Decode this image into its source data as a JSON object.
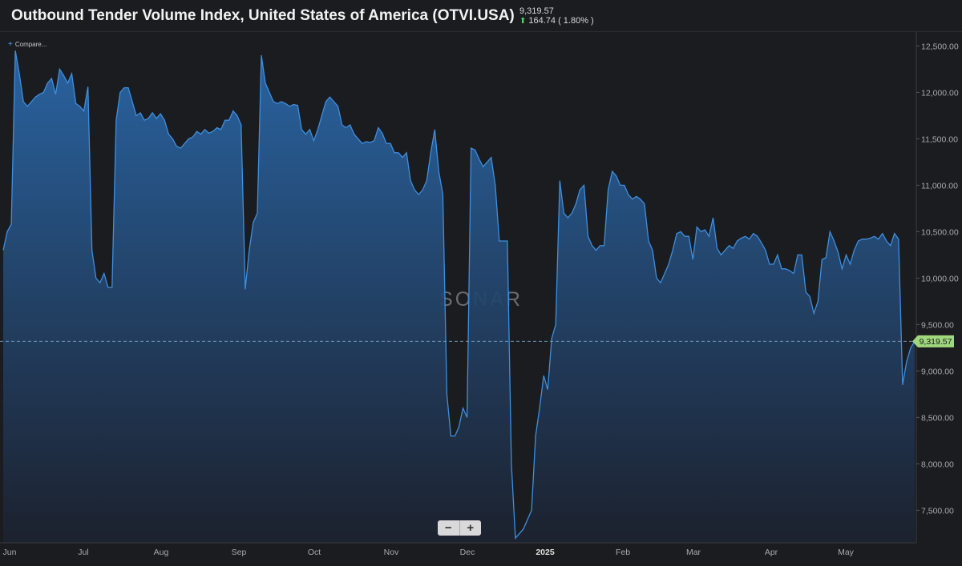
{
  "header": {
    "title": "Outbound Tender Volume Index, United States of America (OTVI.USA)",
    "last_value": "9,319.57",
    "change": "164.74 ( 1.80% )"
  },
  "toolbar": {
    "compare_label": "Compare...",
    "zoom_out": "−",
    "zoom_in": "+"
  },
  "watermark": "SONAR",
  "colors": {
    "line": "#3d8fe0",
    "fill_top": "#2a67a8",
    "fill_bottom": "#1c2230",
    "last_badge": "#9fd77c",
    "change_up": "#4cd964"
  },
  "chart_data": {
    "type": "area",
    "title": "Outbound Tender Volume Index, United States of America (OTVI.USA)",
    "y_axis_position": "right",
    "ylim": [
      7150,
      12650
    ],
    "y_ticks": [
      "7,500.00",
      "8,000.00",
      "8,500.00",
      "9,000.00",
      "9,500.00",
      "10,000.00",
      "10,500.00",
      "11,000.00",
      "11,500.00",
      "12,000.00",
      "12,500.00"
    ],
    "x_ticks": [
      "Jun",
      "Jul",
      "Aug",
      "Sep",
      "Oct",
      "Nov",
      "Dec",
      "2025",
      "Feb",
      "Mar",
      "Apr",
      "May"
    ],
    "last_value": 9319.57,
    "last_value_label": "9,319.57",
    "grid": false,
    "series": [
      {
        "values": [
          10300,
          10500,
          10580,
          12450,
          12200,
          11900,
          11850,
          11900,
          11950,
          11980,
          12000,
          12100,
          12150,
          11980,
          12250,
          12180,
          12100,
          12200,
          11880,
          11850,
          11800,
          12060,
          10300,
          10000,
          9950,
          10050,
          9900,
          9900,
          11700,
          12000,
          12050,
          12050,
          11900,
          11750,
          11780,
          11700,
          11720,
          11780,
          11720,
          11770,
          11700,
          11550,
          11500,
          11420,
          11400,
          11450,
          11500,
          11520,
          11580,
          11550,
          11600,
          11560,
          11580,
          11620,
          11600,
          11700,
          11700,
          11800,
          11750,
          11650,
          9880,
          10300,
          10600,
          10700,
          12400,
          12100,
          12000,
          11900,
          11880,
          11900,
          11880,
          11850,
          11870,
          11860,
          11600,
          11550,
          11600,
          11480,
          11600,
          11750,
          11900,
          11950,
          11900,
          11850,
          11650,
          11620,
          11650,
          11550,
          11500,
          11450,
          11470,
          11460,
          11480,
          11620,
          11560,
          11450,
          11450,
          11350,
          11350,
          11300,
          11350,
          11050,
          10950,
          10900,
          10950,
          11050,
          11350,
          11600,
          11150,
          10900,
          8750,
          8300,
          8300,
          8400,
          8600,
          8500,
          11400,
          11380,
          11280,
          11200,
          11250,
          11300,
          11000,
          10400,
          10400,
          10400,
          8000,
          7200,
          7250,
          7300,
          7400,
          7500,
          8300,
          8600,
          8950,
          8800,
          9350,
          9500,
          11050,
          10700,
          10650,
          10700,
          10800,
          10950,
          11000,
          10450,
          10350,
          10300,
          10350,
          10350,
          10950,
          11150,
          11100,
          11000,
          11000,
          10900,
          10850,
          10880,
          10850,
          10800,
          10400,
          10300,
          10000,
          9950,
          10050,
          10150,
          10300,
          10480,
          10500,
          10450,
          10450,
          10200,
          10550,
          10500,
          10520,
          10450,
          10650,
          10320,
          10250,
          10300,
          10350,
          10320,
          10400,
          10430,
          10450,
          10420,
          10480,
          10450,
          10380,
          10300,
          10150,
          10150,
          10250,
          10100,
          10100,
          10080,
          10050,
          10250,
          10250,
          9850,
          9800,
          9620,
          9750,
          10200,
          10220,
          10500,
          10400,
          10280,
          10100,
          10250,
          10150,
          10300,
          10400,
          10420,
          10420,
          10430,
          10450,
          10420,
          10480,
          10400,
          10350,
          10480,
          10420,
          8850,
          9100,
          9250,
          9319.57
        ]
      }
    ]
  }
}
